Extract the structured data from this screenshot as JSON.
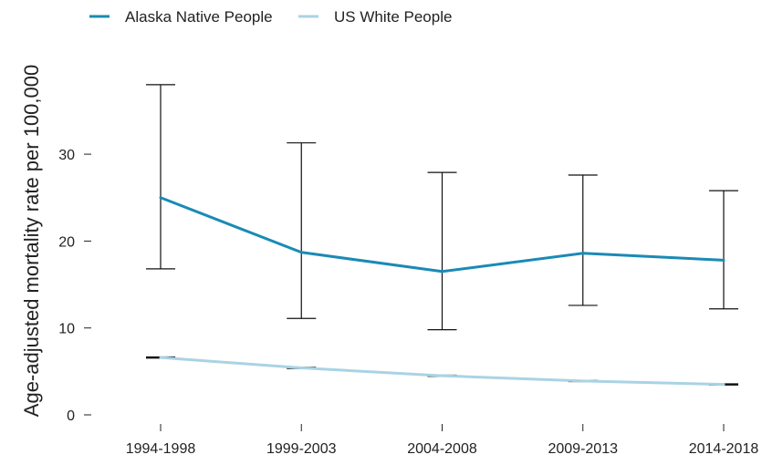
{
  "chart_data": {
    "type": "line",
    "categories": [
      "1994-1998",
      "1999-2003",
      "2004-2008",
      "2009-2013",
      "2014-2018"
    ],
    "series": [
      {
        "name": "Alaska Native People",
        "color": "#1a8ab5",
        "values": [
          25.0,
          18.7,
          16.5,
          18.6,
          17.8
        ],
        "ci_low": [
          16.8,
          11.1,
          9.8,
          12.6,
          12.2
        ],
        "ci_high": [
          38.0,
          31.3,
          27.9,
          27.6,
          25.8
        ]
      },
      {
        "name": "US White People",
        "color": "#a9d3e4",
        "values": [
          6.6,
          5.4,
          4.5,
          3.9,
          3.5
        ],
        "ci_low": [
          6.5,
          5.35,
          4.45,
          3.85,
          3.45
        ],
        "ci_high": [
          6.7,
          5.45,
          4.55,
          3.95,
          3.55
        ]
      }
    ],
    "ylabel": "Age-adjusted mortality rate per 100,000",
    "xlabel": "",
    "ylim": [
      0,
      38
    ],
    "yticks": [
      0,
      10,
      20,
      30
    ],
    "grid": false,
    "legend_position": "top-left"
  }
}
